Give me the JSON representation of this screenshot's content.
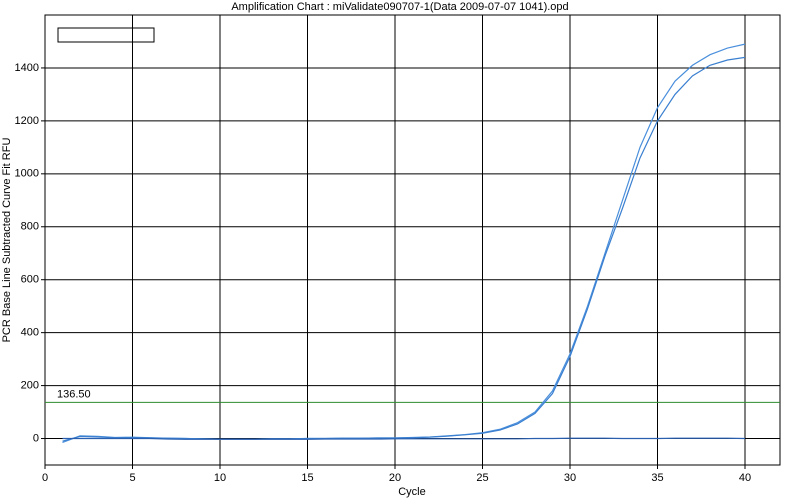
{
  "chart_data": {
    "type": "line",
    "title": "Amplification Chart : miValidate090707-1(Data 2009-07-07 1041).opd",
    "x_label": "Cycle",
    "y_label": "PCR Base Line Subtracted Curve Fit RFU",
    "x": [
      1,
      2,
      3,
      4,
      5,
      6,
      7,
      8,
      9,
      10,
      11,
      12,
      13,
      14,
      15,
      16,
      17,
      18,
      19,
      20,
      21,
      22,
      23,
      24,
      25,
      26,
      27,
      28,
      29,
      30,
      31,
      32,
      33,
      34,
      35,
      36,
      37,
      38,
      39,
      40
    ],
    "series": [
      {
        "color": "#4a8fdc",
        "values": [
          -15,
          10,
          8,
          4,
          5,
          3,
          1,
          0,
          -1,
          -2,
          -2,
          -2,
          -1,
          -1,
          0,
          0,
          1,
          1,
          2,
          2,
          4,
          6,
          10,
          15,
          22,
          35,
          60,
          100,
          180,
          320,
          500,
          700,
          900,
          1100,
          1250,
          1350,
          1410,
          1450,
          1475,
          1490
        ]
      },
      {
        "color": "#3a7fd0",
        "values": [
          -10,
          8,
          6,
          3,
          4,
          2,
          1,
          0,
          -1,
          -2,
          -2,
          -2,
          -1,
          -1,
          0,
          0,
          1,
          1,
          2,
          2,
          3,
          5,
          9,
          14,
          20,
          32,
          55,
          95,
          170,
          310,
          490,
          690,
          870,
          1060,
          1200,
          1300,
          1370,
          1410,
          1430,
          1440
        ]
      },
      {
        "color": "#2a5fb0",
        "values": [
          0,
          0,
          0,
          0,
          0,
          0,
          -2,
          -3,
          -3,
          -3,
          -3,
          -3,
          -3,
          -3,
          -3,
          -2,
          -2,
          -2,
          -2,
          -1,
          -1,
          -1,
          -1,
          -1,
          -1,
          -1,
          -1,
          0,
          0,
          1,
          1,
          1,
          0,
          0,
          0,
          1,
          1,
          1,
          1,
          0
        ]
      }
    ],
    "threshold": {
      "value": 136.5,
      "label": "136.50",
      "color": "#2e8b2e"
    },
    "xlim": [
      0,
      42
    ],
    "xticks": [
      0,
      5,
      10,
      15,
      20,
      25,
      30,
      35,
      40
    ],
    "ylim": [
      -100,
      1600
    ],
    "yticks": [
      0,
      200,
      400,
      600,
      800,
      1000,
      1200,
      1400
    ],
    "grid": true
  }
}
